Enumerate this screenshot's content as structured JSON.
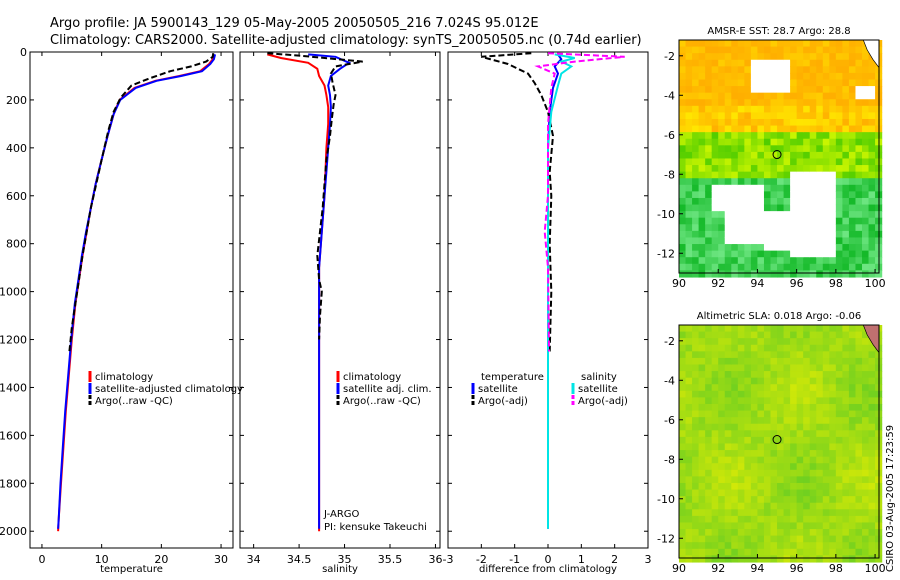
{
  "header": {
    "line1": "Argo profile: JA 5900143_129 05-May-2005 20050505_216 7.024S 95.012E",
    "line2": "Climatology: CARS2000. Satellite-adjusted climatology: synTS_20050505.nc (0.74d earlier)"
  },
  "side_label": "CSIRO 03-Aug-2005 17:23:59",
  "colors": {
    "climatology": "#ff0000",
    "satellite": "#0000ff",
    "argo": "#000000",
    "sat_sal": "#00e5e5",
    "argo_sal": "#ff00ff"
  },
  "chart_data": [
    {
      "type": "line",
      "id": "temperature",
      "xlabel": "temperature",
      "ylabel": "",
      "xlim": [
        -2,
        32
      ],
      "ylim": [
        2070,
        0
      ],
      "xticks": [
        0,
        10,
        20,
        30
      ],
      "yticks": [
        0,
        200,
        400,
        600,
        800,
        1000,
        1200,
        1400,
        1600,
        1800,
        2000
      ],
      "series": [
        {
          "name": "climatology",
          "color": "#ff0000",
          "dash": "",
          "points": [
            [
              28.9,
              10
            ],
            [
              28.6,
              30
            ],
            [
              28.0,
              50
            ],
            [
              26.5,
              80
            ],
            [
              23,
              100
            ],
            [
              19,
              120
            ],
            [
              15.5,
              150
            ],
            [
              13,
              200
            ],
            [
              12,
              260
            ],
            [
              11,
              350
            ],
            [
              10,
              450
            ],
            [
              9,
              550
            ],
            [
              8.2,
              650
            ],
            [
              7.5,
              750
            ],
            [
              6.8,
              850
            ],
            [
              6.2,
              950
            ],
            [
              5.6,
              1050
            ],
            [
              5,
              1200
            ],
            [
              4.5,
              1350
            ],
            [
              4,
              1500
            ],
            [
              3.6,
              1650
            ],
            [
              3.2,
              1800
            ],
            [
              2.8,
              1950
            ],
            [
              2.7,
              2000
            ]
          ]
        },
        {
          "name": "satellite-adjusted climatology",
          "color": "#0000ff",
          "dash": "",
          "points": [
            [
              29.0,
              10
            ],
            [
              28.8,
              30
            ],
            [
              28.2,
              50
            ],
            [
              26.8,
              80
            ],
            [
              23.3,
              100
            ],
            [
              19.2,
              120
            ],
            [
              15.7,
              150
            ],
            [
              13.1,
              200
            ],
            [
              12,
              260
            ],
            [
              11,
              350
            ],
            [
              10,
              450
            ],
            [
              9,
              550
            ],
            [
              8.2,
              650
            ],
            [
              7.4,
              750
            ],
            [
              6.7,
              850
            ],
            [
              6.1,
              950
            ],
            [
              5.5,
              1050
            ],
            [
              4.9,
              1200
            ],
            [
              4.4,
              1350
            ],
            [
              3.9,
              1500
            ],
            [
              3.5,
              1650
            ],
            [
              3.1,
              1800
            ],
            [
              2.8,
              1950
            ],
            [
              2.7,
              1990
            ]
          ]
        },
        {
          "name": "Argo(..raw -QC)",
          "color": "#000000",
          "dash": "6,3",
          "points": [
            [
              28.7,
              5
            ],
            [
              28.6,
              20
            ],
            [
              27.5,
              40
            ],
            [
              25,
              60
            ],
            [
              21.5,
              80
            ],
            [
              18,
              110
            ],
            [
              15,
              140
            ],
            [
              13.2,
              190
            ],
            [
              12,
              250
            ],
            [
              11.1,
              330
            ],
            [
              10,
              450
            ],
            [
              9.1,
              550
            ],
            [
              8.2,
              650
            ],
            [
              7.5,
              750
            ],
            [
              6.8,
              850
            ],
            [
              6.2,
              950
            ],
            [
              5.6,
              1050
            ],
            [
              5,
              1150
            ],
            [
              4.6,
              1250
            ]
          ]
        }
      ],
      "legend": {
        "position": "lower-right",
        "entries": [
          "climatology",
          "satellite-adjusted climatology",
          "Argo(..raw -QC)"
        ]
      }
    },
    {
      "type": "line",
      "id": "salinity",
      "xlabel": "salinity",
      "ylabel": "",
      "xlim": [
        33.85,
        36.05
      ],
      "ylim": [
        2070,
        0
      ],
      "xticks": [
        34,
        34.5,
        35,
        35.5,
        36
      ],
      "series": [
        {
          "name": "climatology",
          "color": "#ff0000",
          "dash": "",
          "points": [
            [
              34.15,
              10
            ],
            [
              34.3,
              25
            ],
            [
              34.6,
              45
            ],
            [
              34.7,
              70
            ],
            [
              34.72,
              100
            ],
            [
              34.78,
              140
            ],
            [
              34.8,
              180
            ],
            [
              34.82,
              230
            ],
            [
              34.82,
              300
            ],
            [
              34.8,
              400
            ],
            [
              34.79,
              500
            ],
            [
              34.78,
              600
            ],
            [
              34.76,
              700
            ],
            [
              34.74,
              800
            ],
            [
              34.72,
              900
            ],
            [
              34.72,
              1000
            ],
            [
              34.72,
              1200
            ],
            [
              34.72,
              1400
            ],
            [
              34.72,
              1600
            ],
            [
              34.72,
              1800
            ],
            [
              34.72,
              2000
            ]
          ]
        },
        {
          "name": "satellite adj. clim.",
          "color": "#0000ff",
          "dash": "",
          "points": [
            [
              34.6,
              10
            ],
            [
              34.9,
              20
            ],
            [
              35.05,
              45
            ],
            [
              34.95,
              70
            ],
            [
              34.85,
              100
            ],
            [
              34.82,
              140
            ],
            [
              34.84,
              180
            ],
            [
              34.85,
              230
            ],
            [
              34.84,
              300
            ],
            [
              34.82,
              400
            ],
            [
              34.8,
              500
            ],
            [
              34.78,
              600
            ],
            [
              34.76,
              700
            ],
            [
              34.74,
              800
            ],
            [
              34.72,
              900
            ],
            [
              34.72,
              1000
            ],
            [
              34.72,
              1200
            ],
            [
              34.72,
              1400
            ],
            [
              34.72,
              1600
            ],
            [
              34.72,
              1800
            ],
            [
              34.72,
              1990
            ]
          ]
        },
        {
          "name": "Argo(..raw -QC)",
          "color": "#000000",
          "dash": "6,3",
          "points": [
            [
              34.15,
              5
            ],
            [
              34.5,
              15
            ],
            [
              35.2,
              40
            ],
            [
              34.9,
              60
            ],
            [
              34.85,
              90
            ],
            [
              34.87,
              130
            ],
            [
              34.9,
              180
            ],
            [
              34.88,
              220
            ],
            [
              34.86,
              280
            ],
            [
              34.84,
              350
            ],
            [
              34.8,
              450
            ],
            [
              34.78,
              550
            ],
            [
              34.76,
              650
            ],
            [
              34.73,
              750
            ],
            [
              34.7,
              850
            ],
            [
              34.72,
              950
            ],
            [
              34.75,
              1000
            ],
            [
              34.73,
              1100
            ],
            [
              34.72,
              1200
            ]
          ]
        }
      ],
      "legend": {
        "position": "lower-right",
        "entries": [
          "climatology",
          "satellite adj. clim.",
          "Argo(..raw -QC)"
        ]
      },
      "annotations": [
        "J-ARGO",
        "PI: kensuke Takeuchi"
      ]
    },
    {
      "type": "line",
      "id": "difference",
      "xlabel": "difference from climatology",
      "ylabel": "",
      "xlim": [
        -3,
        3
      ],
      "ylim": [
        2070,
        0
      ],
      "xticks": [
        -3,
        -2,
        -1,
        0,
        1,
        2,
        3
      ],
      "series": [
        {
          "name": "temperature satellite",
          "color": "#0000ff",
          "dash": "",
          "points": [
            [
              0.3,
              10
            ],
            [
              0.4,
              30
            ],
            [
              0.2,
              60
            ],
            [
              0.3,
              90
            ],
            [
              0.15,
              150
            ],
            [
              0.05,
              250
            ],
            [
              0,
              400
            ],
            [
              0,
              700
            ],
            [
              0,
              1000
            ],
            [
              0,
              1500
            ],
            [
              0,
              1990
            ]
          ]
        },
        {
          "name": "temperature Argo(-adj)",
          "color": "#000000",
          "dash": "6,3",
          "points": [
            [
              -0.5,
              5
            ],
            [
              -2,
              20
            ],
            [
              -1.2,
              50
            ],
            [
              -0.6,
              90
            ],
            [
              -0.4,
              130
            ],
            [
              -0.2,
              180
            ],
            [
              0,
              250
            ],
            [
              0.15,
              350
            ],
            [
              0.05,
              500
            ],
            [
              0.1,
              600
            ],
            [
              0.05,
              800
            ],
            [
              0.1,
              1000
            ],
            [
              0.05,
              1250
            ]
          ]
        },
        {
          "name": "salinity satellite",
          "color": "#00e5e5",
          "dash": "",
          "points": [
            [
              0.2,
              10
            ],
            [
              0.8,
              25
            ],
            [
              0.4,
              40
            ],
            [
              0.7,
              60
            ],
            [
              0.4,
              90
            ],
            [
              0.3,
              140
            ],
            [
              0.1,
              250
            ],
            [
              0,
              400
            ],
            [
              0,
              600
            ],
            [
              0,
              1000
            ],
            [
              0,
              1990
            ]
          ]
        },
        {
          "name": "salinity Argo(-adj)",
          "color": "#ff00ff",
          "dash": "6,3",
          "points": [
            [
              0,
              5
            ],
            [
              2.3,
              20
            ],
            [
              0.8,
              40
            ],
            [
              -0.3,
              60
            ],
            [
              0.2,
              90
            ],
            [
              0.1,
              150
            ],
            [
              0,
              300
            ],
            [
              0,
              600
            ],
            [
              -0.1,
              750
            ],
            [
              0,
              900
            ],
            [
              0.03,
              1250
            ]
          ]
        }
      ],
      "legend": {
        "position": "lower-center",
        "entries": [
          "temperature",
          "satellite",
          "Argo(-adj)",
          "salinity",
          "satellite",
          "Argo(-adj)"
        ]
      }
    },
    {
      "type": "heatmap",
      "id": "sst_map",
      "title": "AMSR-E SST: 28.7  Argo: 28.8",
      "xlim": [
        90,
        100.2
      ],
      "ylim": [
        -13,
        -1.2
      ],
      "xticks": [
        90,
        92,
        94,
        96,
        98,
        100
      ],
      "yticks": [
        -2,
        -4,
        -6,
        -8,
        -10,
        -12
      ],
      "marker": [
        95.0,
        -7.0
      ]
    },
    {
      "type": "heatmap",
      "id": "sla_map",
      "title": "Altimetric SLA: 0.018  Argo: -0.06",
      "xlim": [
        90,
        100.2
      ],
      "ylim": [
        -13,
        -1.2
      ],
      "xticks": [
        90,
        92,
        94,
        96,
        98,
        100
      ],
      "yticks": [
        -2,
        -4,
        -6,
        -8,
        -10,
        -12
      ],
      "marker": [
        95.0,
        -7.0
      ]
    }
  ]
}
